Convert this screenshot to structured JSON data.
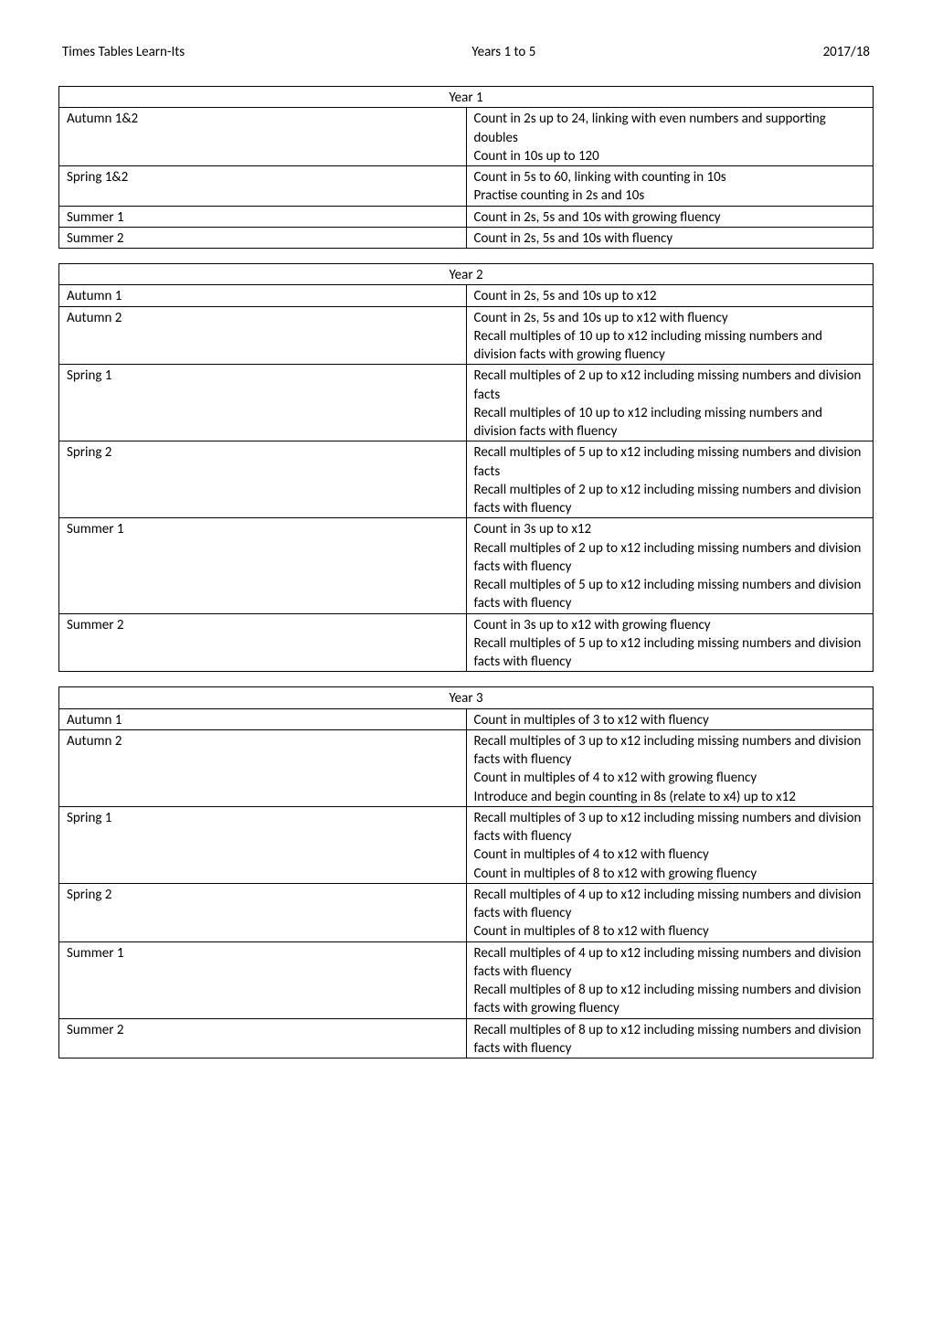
{
  "header": {
    "left": "Times Tables Learn-Its",
    "center": "Years 1 to 5",
    "right": "2017/18"
  },
  "tables": [
    {
      "title": "Year 1",
      "rows": [
        {
          "label": "Autumn 1&2",
          "lines": [
            "Count in 2s up to 24, linking with even numbers and supporting doubles",
            "Count in 10s up to 120"
          ]
        },
        {
          "label": "Spring 1&2",
          "lines": [
            "Count in 5s to 60, linking with counting in 10s",
            "Practise counting in 2s and 10s"
          ]
        },
        {
          "label": "Summer 1",
          "lines": [
            "Count in 2s, 5s and 10s with growing fluency"
          ]
        },
        {
          "label": "Summer 2",
          "lines": [
            "Count in 2s, 5s and 10s with fluency"
          ]
        }
      ]
    },
    {
      "title": "Year 2",
      "rows": [
        {
          "label": "Autumn 1",
          "lines": [
            "Count in 2s, 5s and 10s up to x12"
          ]
        },
        {
          "label": "Autumn 2",
          "lines": [
            "Count in 2s, 5s and 10s up to x12 with fluency",
            "Recall multiples of 10 up to x12 including missing numbers and division facts with growing fluency"
          ]
        },
        {
          "label": "Spring 1",
          "lines": [
            "Recall multiples of 2 up to x12  including missing numbers and division facts",
            "Recall multiples of 10 up to x12 including missing numbers and division facts with fluency"
          ]
        },
        {
          "label": "Spring 2",
          "lines": [
            "Recall multiples of 5 up to x12  including missing numbers and division facts",
            "Recall multiples of 2 up to x12 including missing numbers and division facts with fluency"
          ]
        },
        {
          "label": "Summer 1",
          "lines": [
            "Count in 3s up to x12",
            "Recall multiples of 2 up to x12 including missing numbers and division facts with fluency",
            "Recall multiples of 5 up to x12  including missing numbers and division facts with fluency"
          ]
        },
        {
          "label": "Summer 2",
          "lines": [
            "Count in 3s up to x12 with growing fluency",
            "Recall multiples of 5 up to x12  including missing numbers and division facts with fluency"
          ]
        }
      ]
    },
    {
      "title": "Year 3",
      "rows": [
        {
          "label": "Autumn 1",
          "lines": [
            "Count in multiples of 3 to x12 with fluency"
          ]
        },
        {
          "label": "Autumn 2",
          "lines": [
            "Recall multiples of 3 up to x12 including missing numbers and division facts with fluency",
            "Count in multiples of 4 to x12 with growing fluency",
            "Introduce and begin counting in 8s (relate to x4) up to x12"
          ]
        },
        {
          "label": "Spring 1",
          "lines": [
            "Recall multiples of 3 up to x12 including missing numbers and division facts with fluency",
            "Count in multiples of 4 to x12 with fluency",
            "Count in multiples of 8 to x12 with growing fluency"
          ]
        },
        {
          "label": "Spring 2",
          "lines": [
            "Recall multiples of 4 up to x12 including missing numbers and division facts with fluency",
            "Count in multiples of 8 to x12 with fluency"
          ]
        },
        {
          "label": "Summer 1",
          "lines": [
            "Recall multiples of 4 up to x12 including missing numbers and division facts with fluency",
            "Recall multiples of 8 up to x12 including missing numbers and division facts with growing fluency"
          ]
        },
        {
          "label": "Summer 2",
          "lines": [
            "Recall multiples of 8 up to x12 including missing numbers and division facts with fluency"
          ]
        }
      ]
    }
  ]
}
